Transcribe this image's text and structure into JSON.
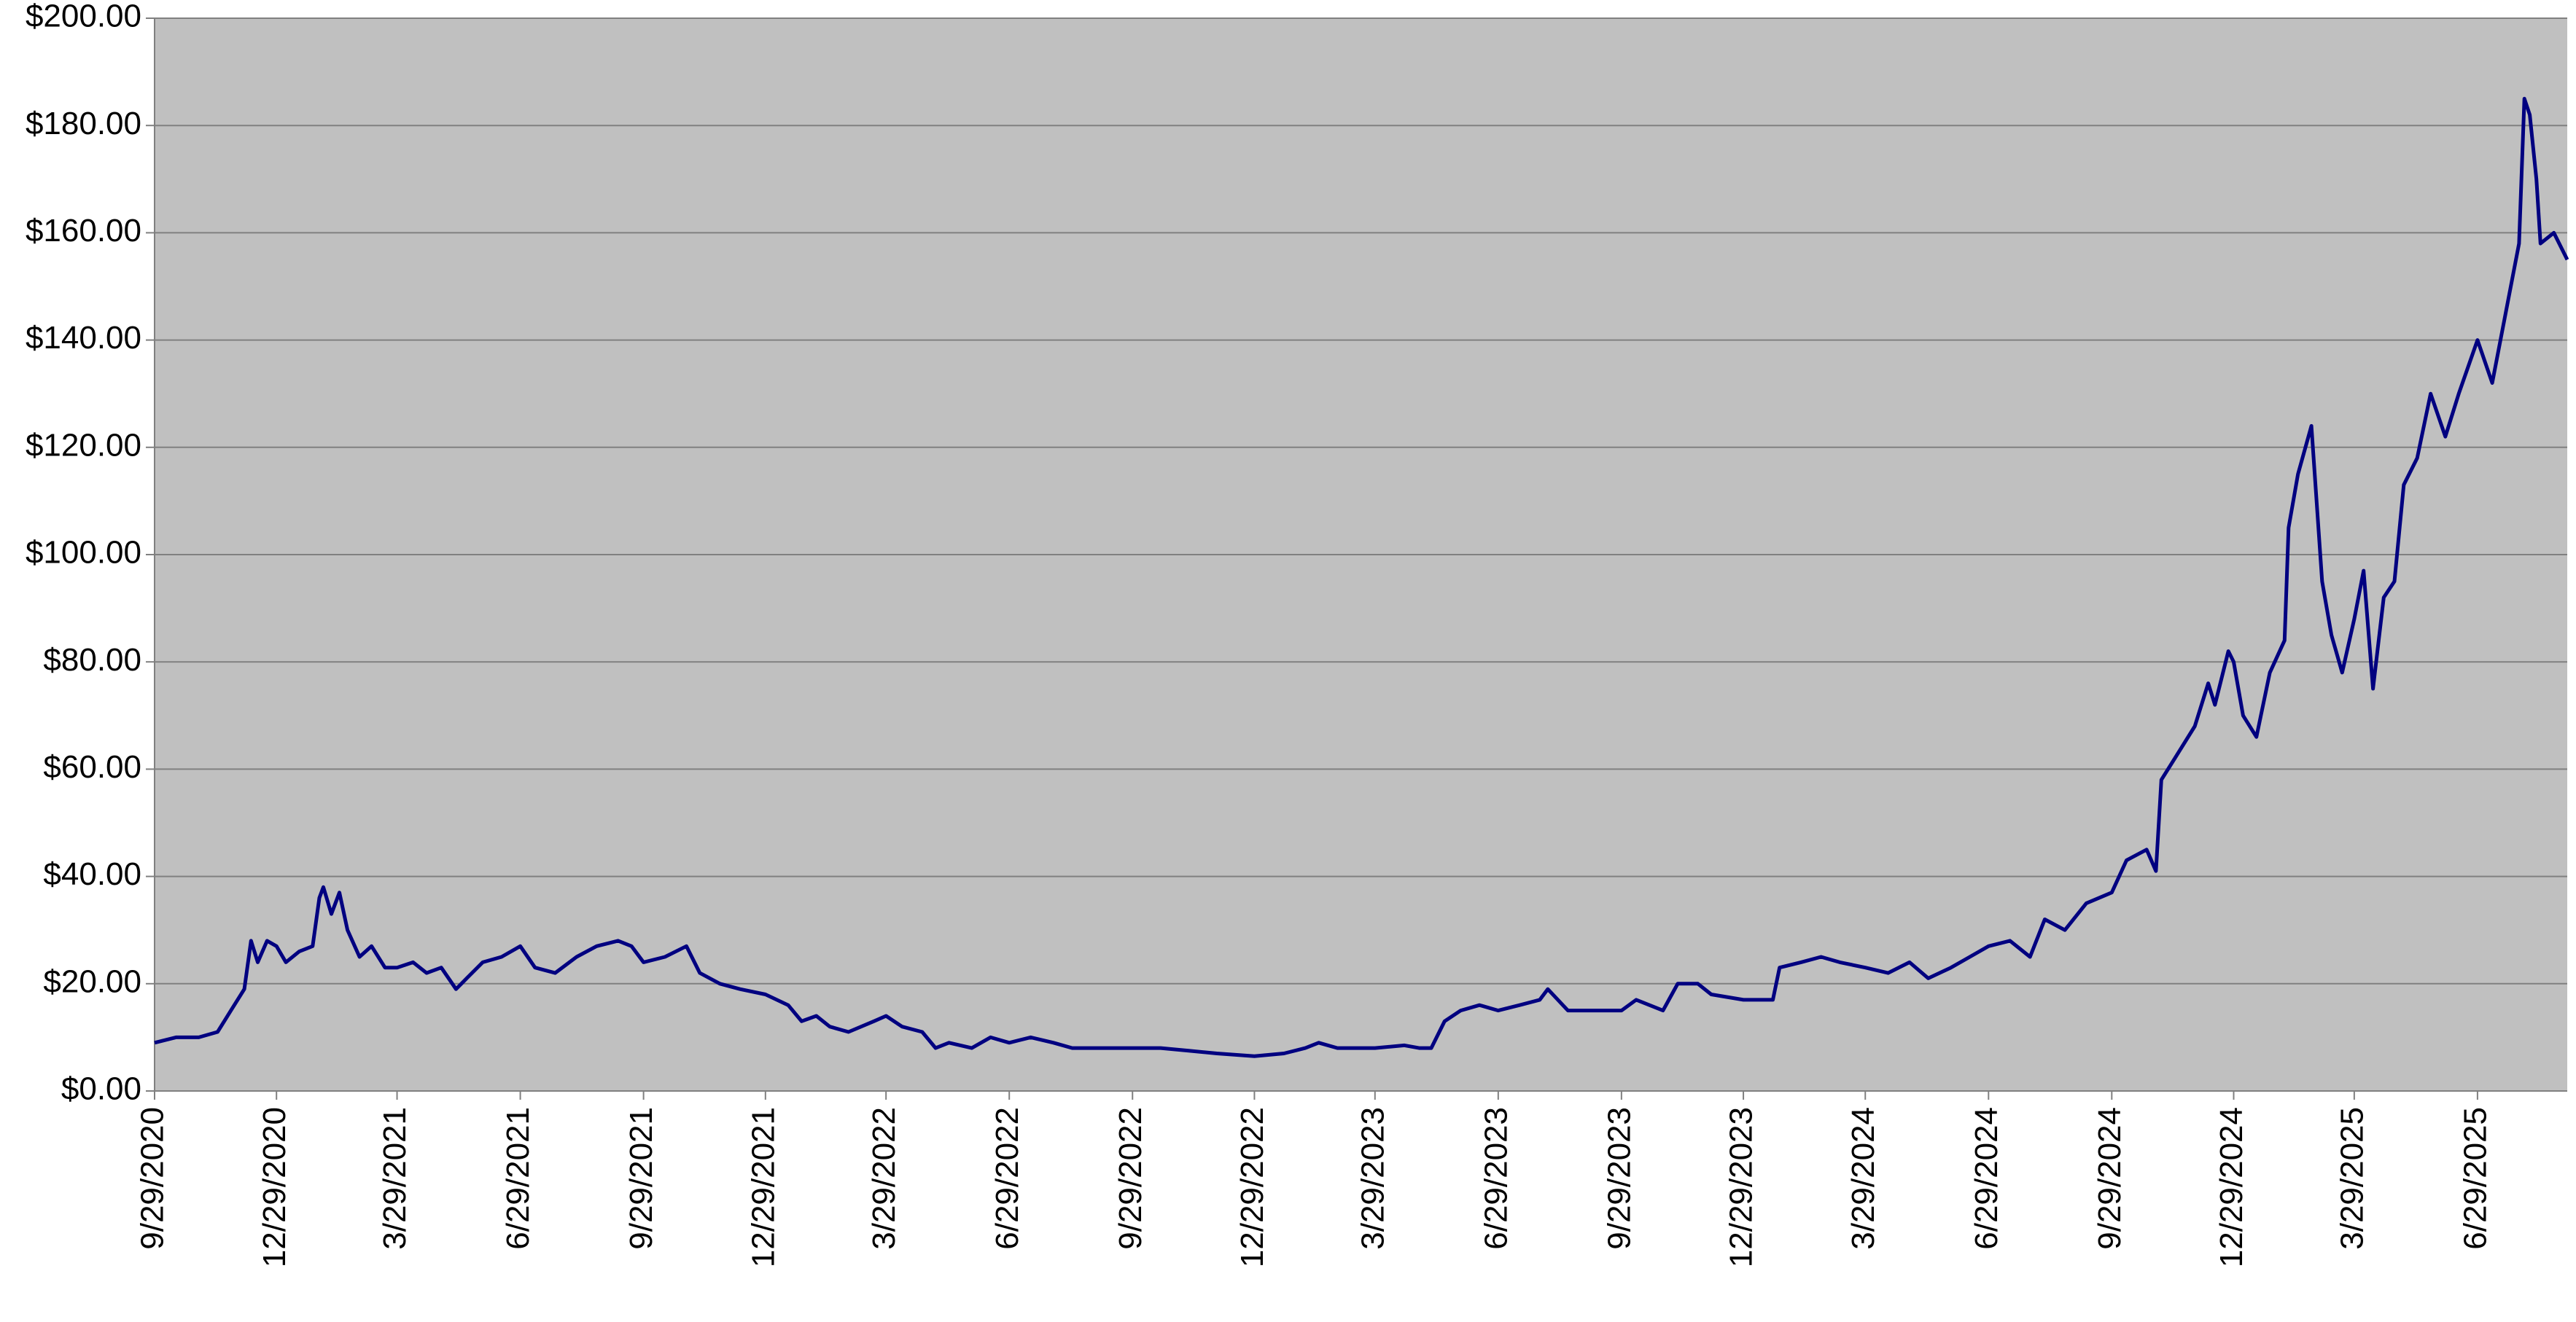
{
  "chart_data": {
    "type": "line",
    "x": [
      "9/29/2020",
      "10/15/2020",
      "11/1/2020",
      "11/15/2020",
      "11/25/2020",
      "12/5/2020",
      "12/10/2020",
      "12/15/2020",
      "12/22/2020",
      "12/29/2020",
      "1/5/2021",
      "1/15/2021",
      "1/25/2021",
      "1/30/2021",
      "2/2/2021",
      "2/8/2021",
      "2/14/2021",
      "2/20/2021",
      "3/1/2021",
      "3/10/2021",
      "3/20/2021",
      "3/29/2021",
      "4/10/2021",
      "4/20/2021",
      "5/1/2021",
      "5/12/2021",
      "5/20/2021",
      "6/1/2021",
      "6/15/2021",
      "6/29/2021",
      "7/10/2021",
      "7/25/2021",
      "8/10/2021",
      "8/25/2021",
      "9/10/2021",
      "9/20/2021",
      "9/29/2021",
      "10/15/2021",
      "10/31/2021",
      "11/10/2021",
      "11/25/2021",
      "12/10/2021",
      "12/29/2021",
      "1/15/2022",
      "1/25/2022",
      "2/5/2022",
      "2/15/2022",
      "3/1/2022",
      "3/20/2022",
      "3/29/2022",
      "4/10/2022",
      "4/25/2022",
      "5/5/2022",
      "5/15/2022",
      "6/1/2022",
      "6/15/2022",
      "6/29/2022",
      "7/15/2022",
      "8/1/2022",
      "8/15/2022",
      "9/1/2022",
      "9/29/2022",
      "10/20/2022",
      "11/10/2022",
      "12/1/2022",
      "12/29/2022",
      "1/20/2023",
      "2/5/2023",
      "2/15/2023",
      "3/1/2023",
      "3/29/2023",
      "4/20/2023",
      "5/1/2023",
      "5/10/2023",
      "5/20/2023",
      "6/1/2023",
      "6/15/2023",
      "6/29/2023",
      "7/15/2023",
      "7/30/2023",
      "8/5/2023",
      "8/20/2023",
      "9/10/2023",
      "9/29/2023",
      "10/10/2023",
      "10/30/2023",
      "11/10/2023",
      "11/25/2023",
      "12/5/2023",
      "12/29/2023",
      "1/20/2024",
      "1/25/2024",
      "2/10/2024",
      "2/25/2024",
      "3/10/2024",
      "3/29/2024",
      "4/15/2024",
      "5/1/2024",
      "5/15/2024",
      "6/1/2024",
      "6/15/2024",
      "6/29/2024",
      "7/15/2024",
      "7/30/2024",
      "8/10/2024",
      "8/25/2024",
      "9/10/2024",
      "9/29/2024",
      "10/10/2024",
      "10/25/2024",
      "11/1/2024",
      "11/5/2024",
      "11/15/2024",
      "11/30/2024",
      "12/10/2024",
      "12/15/2024",
      "12/25/2024",
      "12/29/2024",
      "1/5/2025",
      "1/15/2025",
      "1/25/2025",
      "2/5/2025",
      "2/8/2025",
      "2/15/2025",
      "2/25/2025",
      "3/5/2025",
      "3/12/2025",
      "3/20/2025",
      "3/29/2025",
      "4/5/2025",
      "4/12/2025",
      "4/20/2025",
      "4/28/2025",
      "5/5/2025",
      "5/15/2025",
      "5/25/2025",
      "6/5/2025",
      "6/15/2025",
      "6/29/2025",
      "7/10/2025",
      "7/20/2025",
      "7/30/2025",
      "8/3/2025",
      "8/7/2025",
      "8/12/2025",
      "8/15/2025",
      "8/25/2025",
      "9/4/2025"
    ],
    "series": [
      {
        "color": "#000080",
        "values": [
          9,
          10,
          10,
          11,
          15,
          19,
          28,
          24,
          28,
          27,
          24,
          26,
          27,
          36,
          38,
          33,
          37,
          30,
          25,
          27,
          23,
          23,
          24,
          22,
          23,
          19,
          21,
          24,
          25,
          27,
          23,
          22,
          25,
          27,
          28,
          27,
          24,
          25,
          27,
          22,
          20,
          19,
          18,
          16,
          13,
          14,
          12,
          11,
          13,
          14,
          12,
          11,
          8,
          9,
          8,
          10,
          9,
          10,
          9,
          8,
          8,
          8,
          8,
          7.5,
          7,
          6.5,
          7,
          8,
          9,
          8,
          8,
          8.5,
          8,
          8,
          13,
          15,
          16,
          15,
          16,
          17,
          19,
          15,
          15,
          15,
          17,
          15,
          20,
          20,
          18,
          17,
          17,
          23,
          24,
          25,
          24,
          23,
          22,
          24,
          21,
          23,
          25,
          27,
          28,
          25,
          32,
          30,
          35,
          37,
          43,
          45,
          41,
          58,
          62,
          68,
          76,
          72,
          82,
          80,
          70,
          66,
          78,
          84,
          105,
          115,
          124,
          95,
          85,
          78,
          88,
          97,
          75,
          92,
          95,
          113,
          118,
          130,
          122,
          130,
          140,
          132,
          145,
          158,
          185,
          182,
          170,
          158,
          160,
          155
        ]
      }
    ],
    "xlim": [
      "9/29/2020",
      "9/4/2025"
    ],
    "xticks": [
      "9/29/2020",
      "12/29/2020",
      "3/29/2021",
      "6/29/2021",
      "9/29/2021",
      "12/29/2021",
      "3/29/2022",
      "6/29/2022",
      "9/29/2022",
      "12/29/2022",
      "3/29/2023",
      "6/29/2023",
      "9/29/2023",
      "12/29/2023",
      "3/29/2024",
      "6/29/2024",
      "9/29/2024",
      "12/29/2024",
      "3/29/2025",
      "6/29/2025"
    ],
    "ylim": [
      0,
      200
    ],
    "yticks": [
      {
        "value": 0,
        "label": "$0.00"
      },
      {
        "value": 20,
        "label": "$20.00"
      },
      {
        "value": 40,
        "label": "$40.00"
      },
      {
        "value": 60,
        "label": "$60.00"
      },
      {
        "value": 80,
        "label": "$80.00"
      },
      {
        "value": 100,
        "label": "$100.00"
      },
      {
        "value": 120,
        "label": "$120.00"
      },
      {
        "value": 140,
        "label": "$140.00"
      },
      {
        "value": 160,
        "label": "$160.00"
      },
      {
        "value": 180,
        "label": "$180.00"
      },
      {
        "value": 200,
        "label": "$200.00"
      }
    ],
    "grid": true
  }
}
